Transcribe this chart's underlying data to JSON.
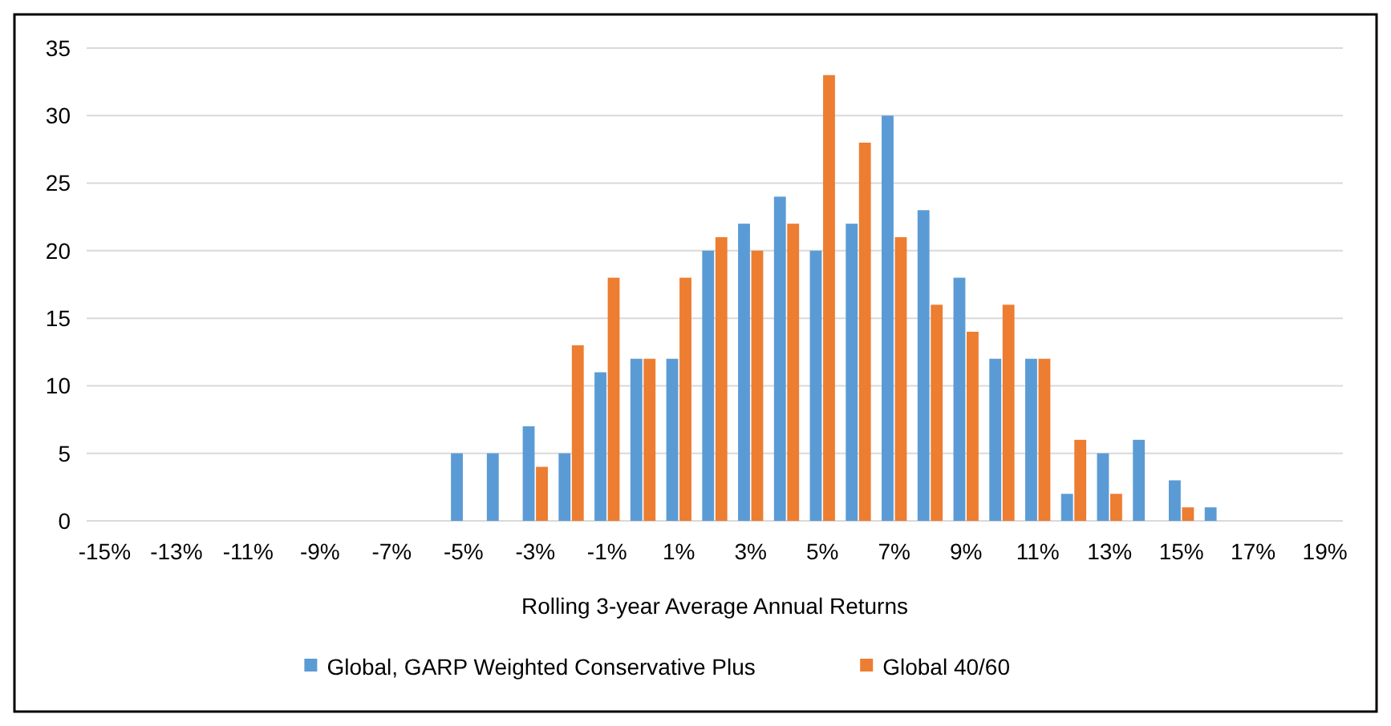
{
  "chart_data": {
    "type": "bar",
    "xlabel": "Rolling 3-year Average Annual Returns",
    "categories": [
      "-15%",
      null,
      "-13%",
      null,
      "-11%",
      null,
      "-9%",
      null,
      "-7%",
      null,
      "-5%",
      null,
      "-3%",
      null,
      "-1%",
      null,
      "1%",
      null,
      "3%",
      null,
      "5%",
      null,
      "7%",
      null,
      "9%",
      null,
      "11%",
      null,
      "13%",
      null,
      "15%",
      null,
      "17%",
      null,
      "19%"
    ],
    "series": [
      {
        "name": "Global, GARP Weighted Conservative Plus",
        "color": "#5b9bd5",
        "values": [
          null,
          null,
          null,
          null,
          null,
          null,
          null,
          null,
          null,
          null,
          5,
          5,
          7,
          5,
          11,
          12,
          12,
          20,
          22,
          24,
          20,
          22,
          30,
          23,
          18,
          12,
          12,
          2,
          5,
          6,
          3,
          1,
          null,
          null,
          null
        ]
      },
      {
        "name": "Global 40/60",
        "color": "#ed7d31",
        "values": [
          null,
          null,
          null,
          null,
          null,
          null,
          null,
          null,
          null,
          null,
          null,
          null,
          4,
          13,
          18,
          12,
          18,
          21,
          20,
          22,
          33,
          28,
          21,
          16,
          14,
          16,
          12,
          6,
          2,
          null,
          1,
          null,
          null,
          null,
          null
        ]
      }
    ],
    "ylim": [
      0,
      35
    ],
    "yticks": [
      0,
      5,
      10,
      15,
      20,
      25,
      30,
      35
    ],
    "grid": "y",
    "legend": "bottom"
  }
}
